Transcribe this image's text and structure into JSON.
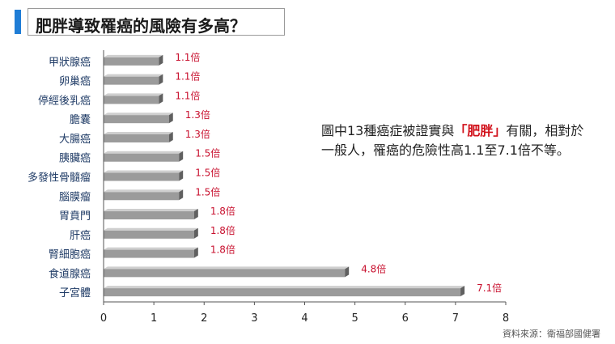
{
  "header": {
    "title": "肥胖導致罹癌的風險有多高？"
  },
  "note": {
    "part1": "圖中13種癌症被證實與",
    "highlight": "「肥胖」",
    "part2": "有關，相對於一般人，罹癌的危險性高1.1至7.1倍不等。"
  },
  "source": "資料來源：衛福部國健署",
  "colors": {
    "accent": "#1f7dd6",
    "label": "#c8102e",
    "bar": "#9b9b9b",
    "bar_top": "#cfcfcf",
    "bar_shadow": "#606060"
  },
  "chart_data": {
    "type": "bar",
    "orientation": "horizontal",
    "categories": [
      "甲狀腺癌",
      "卵巢癌",
      "停經後乳癌",
      "膽囊",
      "大腸癌",
      "胰臟癌",
      "多發性骨髓瘤",
      "腦膜瘤",
      "胃賁門",
      "肝癌",
      "腎細胞癌",
      "食道腺癌",
      "子宮體"
    ],
    "values": [
      1.1,
      1.1,
      1.1,
      1.3,
      1.3,
      1.5,
      1.5,
      1.5,
      1.8,
      1.8,
      1.8,
      4.8,
      7.1
    ],
    "data_labels": [
      "1.1倍",
      "1.1倍",
      "1.1倍",
      "1.3倍",
      "1.3倍",
      "1.5倍",
      "1.5倍",
      "1.5倍",
      "1.8倍",
      "1.8倍",
      "1.8倍",
      "4.8倍",
      "7.1倍"
    ],
    "x_ticks": [
      "0",
      "1",
      "2",
      "3",
      "4",
      "5",
      "6",
      "7",
      "8"
    ],
    "xlim": [
      0,
      8
    ],
    "grid": false,
    "legend": "none"
  }
}
